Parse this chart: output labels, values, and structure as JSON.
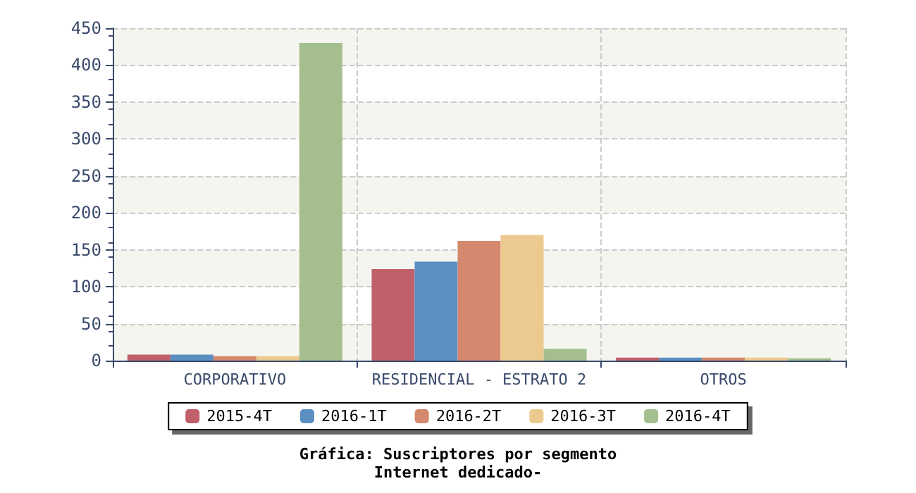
{
  "chart_data": {
    "type": "bar",
    "title": "Gráfica: Suscriptores por segmento",
    "subtitle": "Internet dedicado-",
    "categories": [
      "CORPORATIVO",
      "RESIDENCIAL - ESTRATO 2",
      "OTROS"
    ],
    "series": [
      {
        "name": "2015-4T",
        "color": "#c0606a",
        "values": [
          8,
          124,
          4
        ]
      },
      {
        "name": "2016-1T",
        "color": "#5b8fc2",
        "values": [
          8,
          134,
          4
        ]
      },
      {
        "name": "2016-2T",
        "color": "#d4896e",
        "values": [
          6,
          162,
          4
        ]
      },
      {
        "name": "2016-3T",
        "color": "#ecc98e",
        "values": [
          6,
          170,
          4
        ]
      },
      {
        "name": "2016-4T",
        "color": "#a4bf8d",
        "values": [
          430,
          16,
          3
        ]
      }
    ],
    "ylim": [
      0,
      450
    ],
    "yticks": [
      0,
      50,
      100,
      150,
      200,
      250,
      300,
      350,
      400,
      450
    ],
    "grid": true,
    "legend": "bottom"
  }
}
